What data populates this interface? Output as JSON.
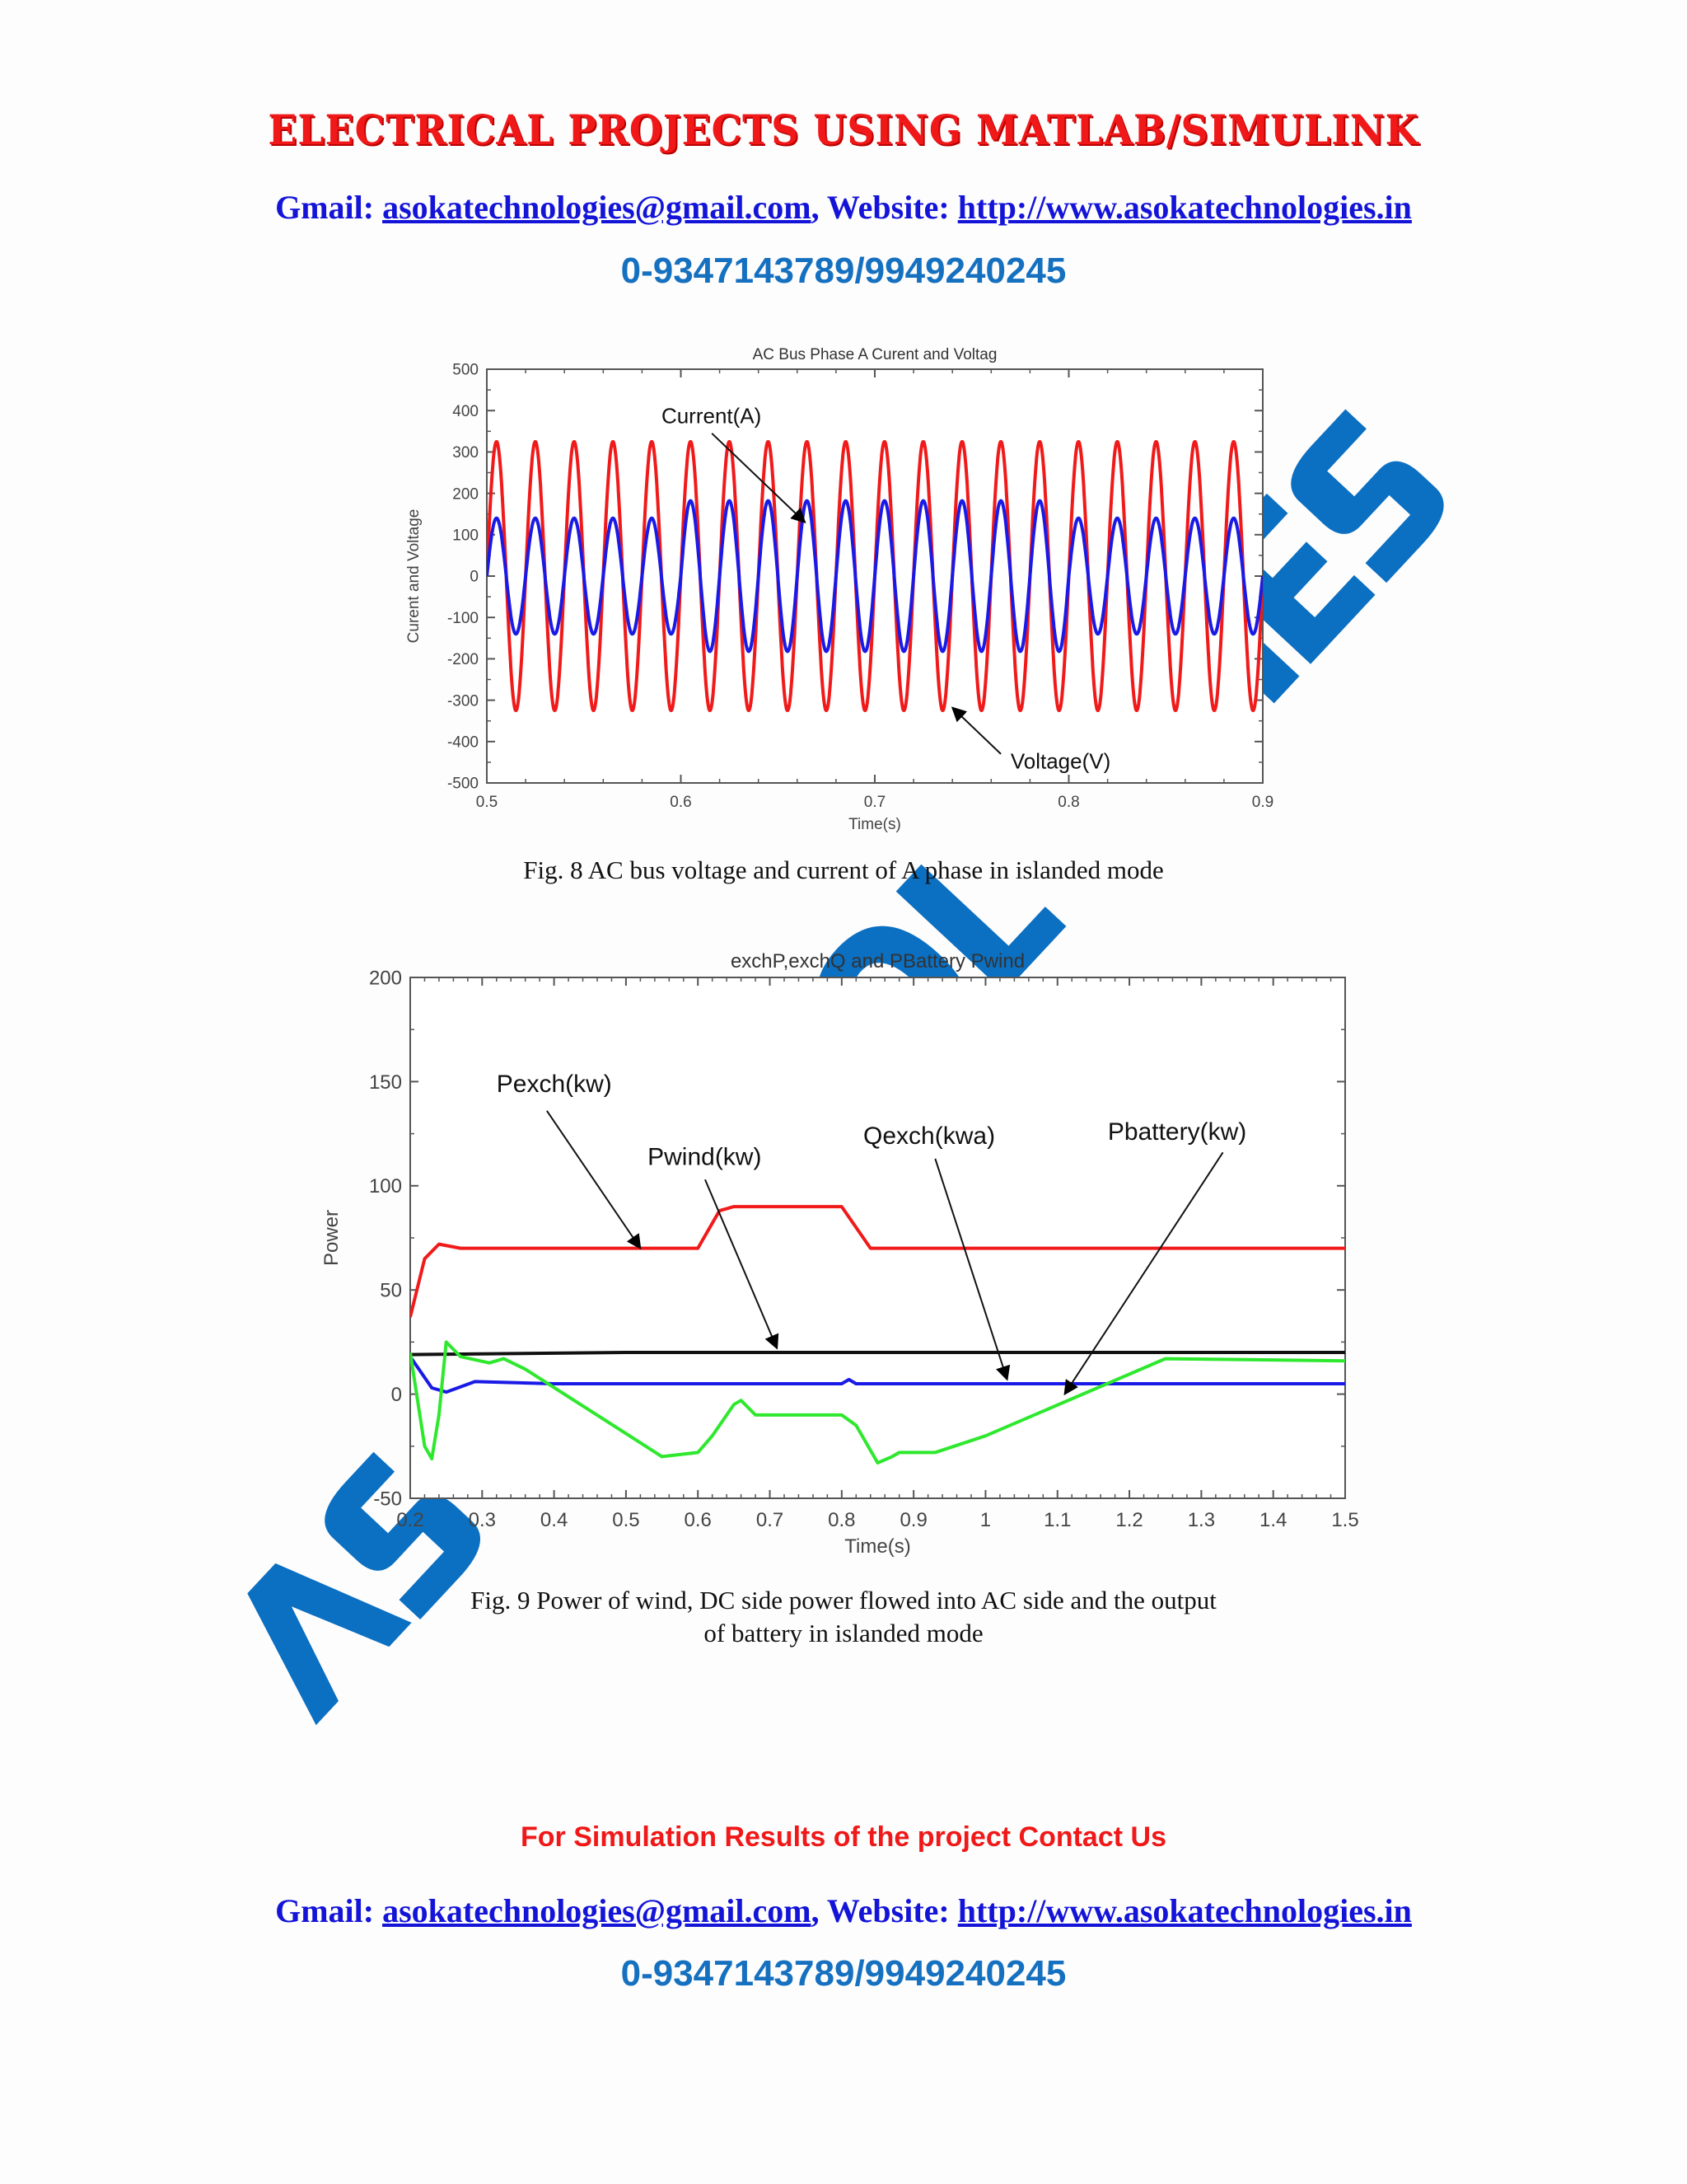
{
  "header": {
    "banner": "ELECTRICAL PROJECTS USING MATLAB/SIMULINK",
    "gmail_label": "Gmail: ",
    "gmail": "asokatechnologies@gmail.com",
    "website_label": ", Website: ",
    "website": "http://www.asokatechnologies.in",
    "phone": "0-9347143789/9949240245"
  },
  "watermark": "ASOKA TECHNOLOGIES",
  "figures": {
    "fig8_caption": "Fig. 8 AC bus voltage and current of A phase in islanded mode",
    "fig9_caption_line1": "Fig. 9  Power of wind, DC side power flowed into AC side and the output",
    "fig9_caption_line2": "of battery in islanded mode"
  },
  "footer": {
    "note": "For Simulation Results of the project Contact Us",
    "gmail_label": "Gmail: ",
    "gmail": "asokatechnologies@gmail.com",
    "website_label": ", Website: ",
    "website": "http://www.asokatechnologies.in",
    "phone": "0-9347143789/9949240245"
  },
  "chart_data": [
    {
      "type": "line",
      "title": "AC Bus Phase A Curent and Voltag",
      "xlabel": "Time(s)",
      "ylabel": "Curent and Voltage",
      "xlim": [
        0.5,
        0.9
      ],
      "ylim": [
        -500,
        500
      ],
      "xticks": [
        "0.5",
        "0.6",
        "0.7",
        "0.8",
        "0.9"
      ],
      "yticks": [
        "-500",
        "-400",
        "-300",
        "-200",
        "-100",
        "0",
        "100",
        "200",
        "300",
        "400",
        "500"
      ],
      "grid": false,
      "series": [
        {
          "name": "Voltage(V)",
          "color": "#f01a1a",
          "kind": "sine",
          "frequency_hz": 50,
          "segments": [
            [
              0.5,
              0.9,
              325
            ]
          ]
        },
        {
          "name": "Current(A)",
          "color": "#1a1ae6",
          "kind": "sine",
          "frequency_hz": 50,
          "segments": [
            [
              0.5,
              0.6,
              140
            ],
            [
              0.6,
              0.8,
              182
            ],
            [
              0.8,
              0.9,
              140
            ]
          ]
        }
      ],
      "annotations": [
        {
          "text": "Current(A)",
          "label_at": [
            0.59,
            370
          ],
          "arrow_from": [
            0.616,
            345
          ],
          "arrow_to": [
            0.664,
            130
          ]
        },
        {
          "text": "Voltage(V)",
          "label_at": [
            0.77,
            -465
          ],
          "arrow_from": [
            0.765,
            -430
          ],
          "arrow_to": [
            0.74,
            -318
          ]
        }
      ]
    },
    {
      "type": "line",
      "title": "exchP,exchQ and PBattery Pwind",
      "xlabel": "Time(s)",
      "ylabel": "Power",
      "xlim": [
        0.2,
        1.5
      ],
      "ylim": [
        -50,
        200
      ],
      "xticks": [
        "0.2",
        "0.3",
        "0.4",
        "0.5",
        "0.6",
        "0.7",
        "0.8",
        "0.9",
        "1",
        "1.1",
        "1.2",
        "1.3",
        "1.4",
        "1.5"
      ],
      "yticks": [
        "-50",
        "0",
        "50",
        "100",
        "150",
        "200"
      ],
      "grid": false,
      "series": [
        {
          "name": "Pexch(kw)",
          "color": "#f01a1a",
          "x": [
            0.2,
            0.22,
            0.24,
            0.27,
            0.6,
            0.63,
            0.65,
            0.8,
            0.82,
            0.84,
            1.5
          ],
          "y": [
            37,
            65,
            72,
            70,
            70,
            88,
            90,
            90,
            80,
            70,
            70
          ]
        },
        {
          "name": "Pwind(kw)",
          "color": "#111111",
          "x": [
            0.2,
            0.5,
            1.0,
            1.5
          ],
          "y": [
            19,
            20,
            20,
            20
          ]
        },
        {
          "name": "Qexch(kwa)",
          "color": "#1a1ae6",
          "x": [
            0.2,
            0.23,
            0.25,
            0.29,
            0.4,
            0.8,
            0.81,
            0.82,
            1.5
          ],
          "y": [
            18,
            3,
            1,
            6,
            5,
            5,
            7,
            5,
            5
          ]
        },
        {
          "name": "Pbattery(kw)",
          "color": "#2ee82e",
          "x": [
            0.2,
            0.22,
            0.23,
            0.24,
            0.25,
            0.27,
            0.31,
            0.33,
            0.36,
            0.55,
            0.6,
            0.62,
            0.65,
            0.66,
            0.68,
            0.8,
            0.82,
            0.85,
            0.87,
            0.88,
            0.93,
            1.0,
            1.25,
            1.5
          ],
          "y": [
            20,
            -25,
            -31,
            -10,
            25,
            18,
            15,
            17,
            12,
            -30,
            -28,
            -20,
            -5,
            -3,
            -10,
            -10,
            -15,
            -33,
            -30,
            -28,
            -28,
            -20,
            17,
            16
          ]
        }
      ],
      "annotations": [
        {
          "text": "Pexch(kw)",
          "label_at": [
            0.32,
            145
          ],
          "arrow_from": [
            0.39,
            136
          ],
          "arrow_to": [
            0.52,
            70
          ]
        },
        {
          "text": "Pwind(kw)",
          "label_at": [
            0.53,
            110
          ],
          "arrow_from": [
            0.61,
            103
          ],
          "arrow_to": [
            0.71,
            22
          ]
        },
        {
          "text": "Qexch(kwa)",
          "label_at": [
            0.83,
            120
          ],
          "arrow_from": [
            0.93,
            113
          ],
          "arrow_to": [
            1.03,
            7
          ]
        },
        {
          "text": "Pbattery(kw)",
          "label_at": [
            1.17,
            122
          ],
          "arrow_from": [
            1.33,
            116
          ],
          "arrow_to": [
            1.11,
            0
          ]
        }
      ]
    }
  ]
}
